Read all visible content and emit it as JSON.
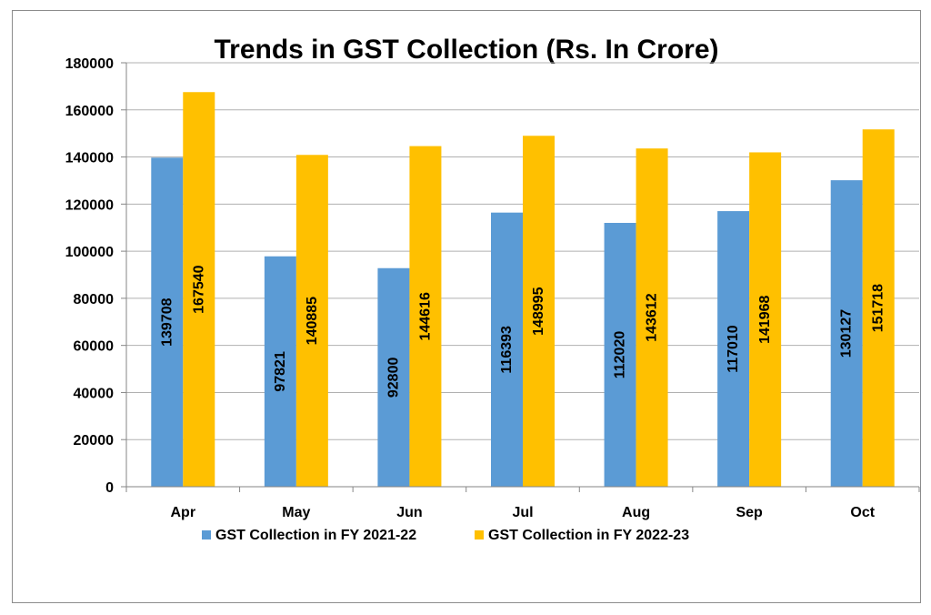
{
  "chart_data": {
    "type": "bar",
    "title": "Trends in GST Collection (Rs. In Crore)",
    "categories": [
      "Apr",
      "May",
      "Jun",
      "Jul",
      "Aug",
      "Sep",
      "Oct"
    ],
    "series": [
      {
        "name": "GST Collection in FY 2021-22",
        "color": "#5B9BD5",
        "values": [
          139708,
          97821,
          92800,
          116393,
          112020,
          117010,
          130127
        ]
      },
      {
        "name": "GST Collection in FY 2022-23",
        "color": "#FFC000",
        "values": [
          167540,
          140885,
          144616,
          148995,
          143612,
          141968,
          151718
        ]
      }
    ],
    "ylim": [
      0,
      180000
    ],
    "yticks": [
      0,
      20000,
      40000,
      60000,
      80000,
      100000,
      120000,
      140000,
      160000,
      180000
    ],
    "grid": true,
    "legend_position": "bottom",
    "data_labels": "rotated inside bars"
  }
}
